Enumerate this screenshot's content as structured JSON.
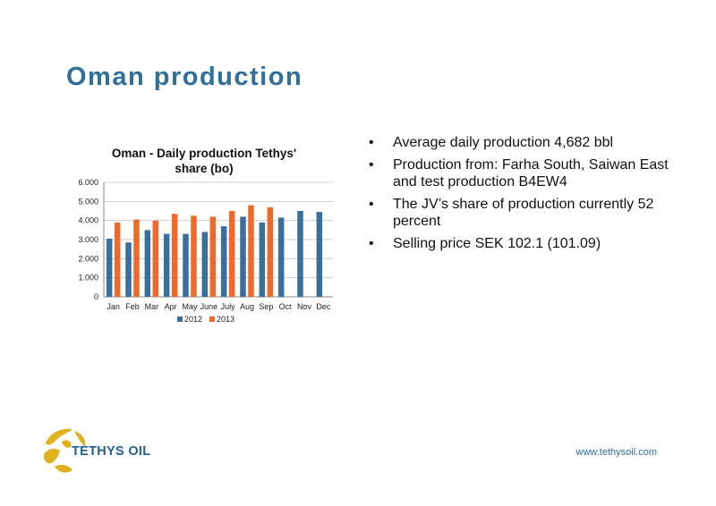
{
  "slide": {
    "title": "Oman production",
    "website": "www.tethysoil.com",
    "logo_text": "TETHYS OIL",
    "bullets": [
      "Average daily production 4,682 bbl",
      "Production from: Farha South, Saiwan East and test production B4EW4",
      "The JV’s share of production currently 52 percent",
      "Selling price SEK 102.1 (101.09)"
    ],
    "bullet_glyph": "•"
  },
  "colors": {
    "title": "#2f6f9a",
    "series_2012": "#3a6f9d",
    "series_2013": "#ec6a2c",
    "logo_gold": "#e0b21d",
    "logo_text": "#1f5e8f"
  },
  "chart_data": {
    "type": "bar",
    "title_lines": [
      "Oman - Daily production Tethys'",
      "share (bo)"
    ],
    "categories": [
      "Jan",
      "Feb",
      "Mar",
      "Apr",
      "May",
      "June",
      "July",
      "Aug",
      "Sep",
      "Oct",
      "Nov",
      "Dec"
    ],
    "series": [
      {
        "name": "2012",
        "values": [
          3050,
          2850,
          3500,
          3300,
          3300,
          3400,
          3700,
          4200,
          3900,
          4150,
          4500,
          4450
        ]
      },
      {
        "name": "2013",
        "values": [
          3900,
          4050,
          4000,
          4350,
          4250,
          4200,
          4500,
          4800,
          4700,
          null,
          null,
          null
        ]
      }
    ],
    "ylim": [
      0,
      6000
    ],
    "yticks": [
      "0",
      "1.000",
      "2.000",
      "3.000",
      "4.000",
      "5.000",
      "6.000"
    ],
    "grid": true,
    "legend_position": "bottom"
  }
}
